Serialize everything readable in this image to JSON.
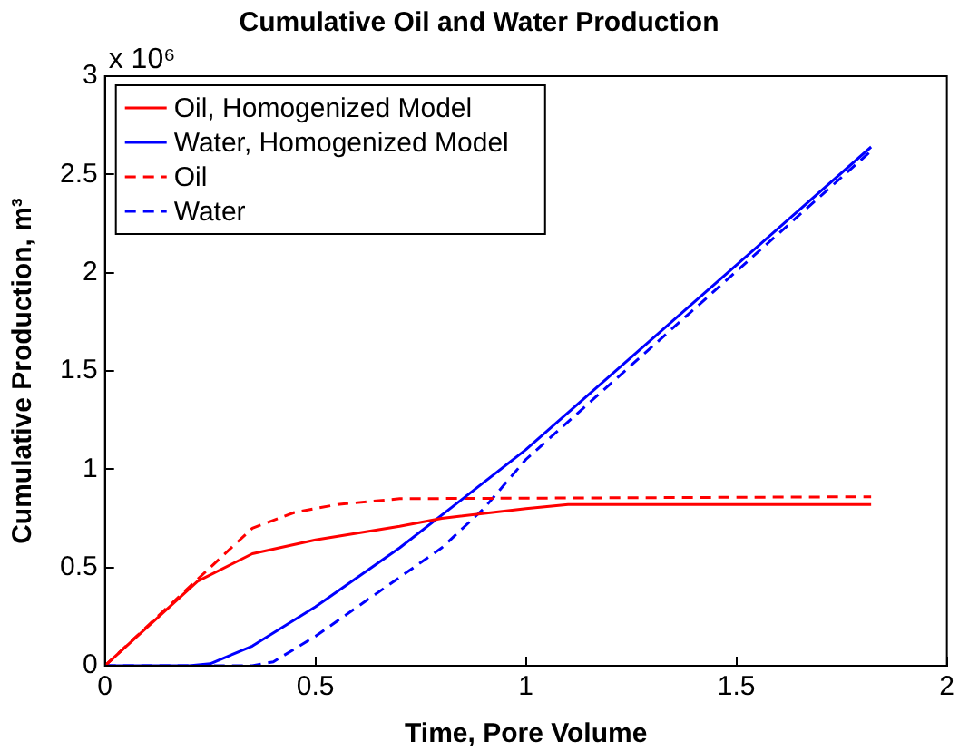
{
  "chart_data": {
    "type": "line",
    "title": "Cumulative Oil and Water Production",
    "xlabel": "Time, Pore Volume",
    "ylabel": "Cumulative Production, m³",
    "annotations": [
      "x 10⁶"
    ],
    "xlim": [
      0,
      2
    ],
    "xticks": [
      0,
      0.5,
      1,
      1.5,
      2
    ],
    "ylim": [
      0,
      3
    ],
    "yticks": [
      0,
      0.5,
      1,
      1.5,
      2,
      2.5,
      3
    ],
    "grid": false,
    "legend": "top left",
    "marker": "none",
    "series": [
      {
        "name": "Oil, Homogenized Model",
        "color": "#ff0000",
        "line_style": "solid",
        "x": [
          0,
          0.22,
          0.35,
          0.5,
          0.7,
          0.8,
          1.0,
          1.1,
          1.82
        ],
        "values": [
          0,
          0.43,
          0.57,
          0.64,
          0.71,
          0.75,
          0.8,
          0.82,
          0.82
        ]
      },
      {
        "name": "Water, Homogenized Model",
        "color": "#0000ff",
        "line_style": "solid",
        "x": [
          0,
          0.2,
          0.25,
          0.35,
          0.5,
          0.7,
          0.85,
          1.0,
          1.82
        ],
        "values": [
          0,
          0,
          0.01,
          0.1,
          0.3,
          0.6,
          0.85,
          1.1,
          2.64
        ]
      },
      {
        "name": "Oil",
        "color": "#ff0000",
        "line_style": "dashed",
        "x": [
          0,
          0.22,
          0.35,
          0.45,
          0.55,
          0.7,
          1.82
        ],
        "values": [
          0,
          0.44,
          0.7,
          0.78,
          0.82,
          0.85,
          0.86
        ]
      },
      {
        "name": "Water",
        "color": "#0000ff",
        "line_style": "dashed",
        "x": [
          0,
          0.35,
          0.4,
          0.5,
          0.6,
          0.8,
          0.9,
          1.0,
          1.82
        ],
        "values": [
          0,
          0,
          0.02,
          0.15,
          0.3,
          0.6,
          0.8,
          1.05,
          2.62
        ]
      }
    ]
  }
}
